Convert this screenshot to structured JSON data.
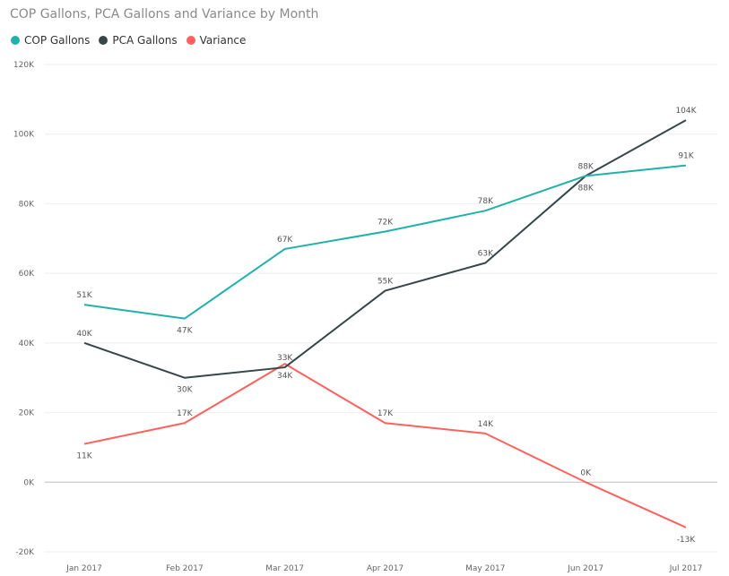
{
  "chart_data": {
    "type": "line",
    "title": "COP Gallons, PCA Gallons and Variance by Month",
    "categories": [
      "Jan 2017",
      "Feb 2017",
      "Mar 2017",
      "Apr 2017",
      "May 2017",
      "Jun 2017",
      "Jul 2017"
    ],
    "series": [
      {
        "name": "COP Gallons",
        "color": "#20B2AA",
        "values": [
          51000,
          47000,
          67000,
          72000,
          78000,
          88000,
          91000
        ],
        "labels": [
          "51K",
          "47K",
          "67K",
          "72K",
          "78K",
          "88K",
          "91K"
        ]
      },
      {
        "name": "PCA Gallons",
        "color": "#374649",
        "values": [
          40000,
          30000,
          33000,
          55000,
          63000,
          88000,
          104000
        ],
        "labels": [
          "40K",
          "30K",
          "33K",
          "55K",
          "63K",
          "88K",
          "104K"
        ]
      },
      {
        "name": "Variance",
        "color": "#FD625E",
        "values": [
          11000,
          17000,
          34000,
          17000,
          14000,
          0,
          -13000
        ],
        "labels": [
          "11K",
          "17K",
          "34K",
          "17K",
          "14K",
          "0K",
          "-13K"
        ]
      }
    ],
    "yticks": [
      -20000,
      0,
      20000,
      40000,
      60000,
      80000,
      100000,
      120000
    ],
    "ytick_labels": [
      "-20K",
      "0K",
      "20K",
      "40K",
      "60K",
      "80K",
      "100K",
      "120K"
    ],
    "ylim": [
      -20000,
      120000
    ],
    "legend_position": "top-left",
    "grid": true
  }
}
